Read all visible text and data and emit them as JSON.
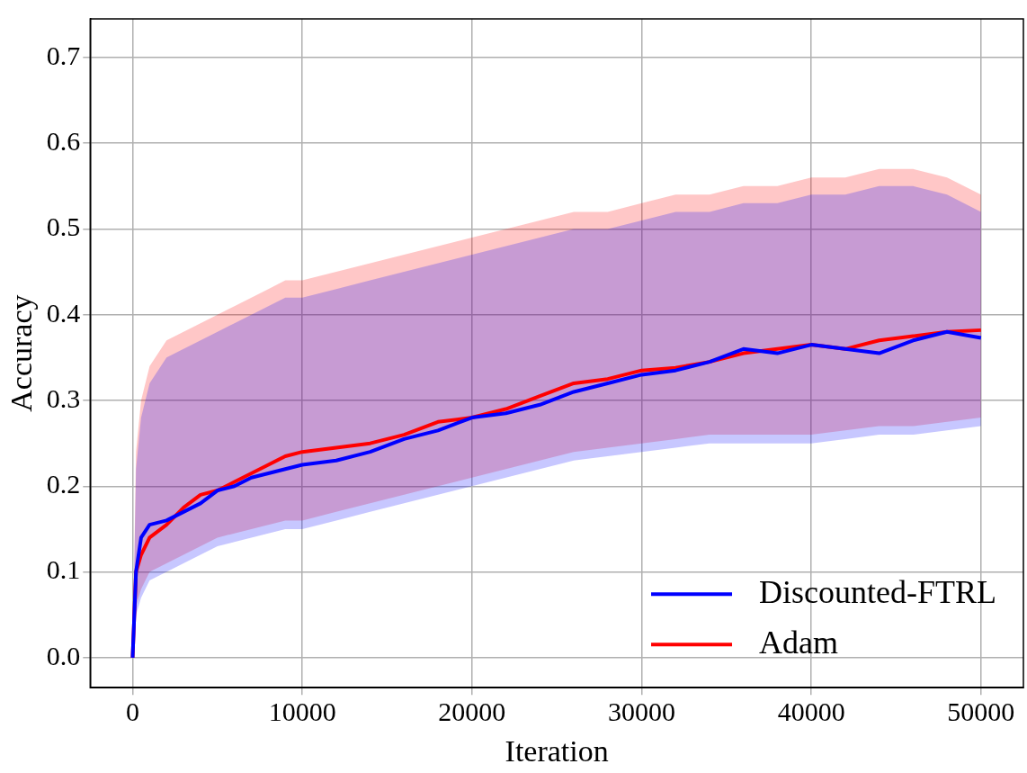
{
  "chart_data": {
    "type": "line",
    "xlabel": "Iteration",
    "ylabel": "Accuracy",
    "x": [
      0,
      200,
      500,
      1000,
      2000,
      3000,
      4000,
      5000,
      6000,
      7000,
      8000,
      9000,
      10000,
      12000,
      14000,
      16000,
      18000,
      20000,
      22000,
      24000,
      26000,
      28000,
      30000,
      32000,
      34000,
      36000,
      38000,
      40000,
      42000,
      44000,
      46000,
      48000,
      50000
    ],
    "series": [
      {
        "name": "Discounted-FTRL",
        "color": "#0000ff",
        "values": [
          0,
          0.1,
          0.14,
          0.155,
          0.16,
          0.17,
          0.18,
          0.195,
          0.2,
          0.21,
          0.215,
          0.22,
          0.225,
          0.23,
          0.24,
          0.255,
          0.265,
          0.28,
          0.285,
          0.295,
          0.31,
          0.32,
          0.33,
          0.335,
          0.345,
          0.36,
          0.355,
          0.365,
          0.36,
          0.355,
          0.37,
          0.38,
          0.373
        ],
        "lower": [
          0,
          0.05,
          0.07,
          0.09,
          0.1,
          0.11,
          0.12,
          0.13,
          0.135,
          0.14,
          0.145,
          0.15,
          0.15,
          0.16,
          0.17,
          0.18,
          0.19,
          0.2,
          0.21,
          0.22,
          0.23,
          0.235,
          0.24,
          0.245,
          0.25,
          0.25,
          0.25,
          0.25,
          0.255,
          0.26,
          0.26,
          0.265,
          0.27
        ],
        "upper": [
          0,
          0.22,
          0.28,
          0.32,
          0.35,
          0.36,
          0.37,
          0.38,
          0.39,
          0.4,
          0.41,
          0.42,
          0.42,
          0.43,
          0.44,
          0.45,
          0.46,
          0.47,
          0.48,
          0.49,
          0.5,
          0.5,
          0.51,
          0.52,
          0.52,
          0.53,
          0.53,
          0.54,
          0.54,
          0.55,
          0.55,
          0.54,
          0.52
        ]
      },
      {
        "name": "Adam",
        "color": "#ff0000",
        "values": [
          0,
          0.1,
          0.12,
          0.14,
          0.155,
          0.175,
          0.19,
          0.195,
          0.205,
          0.215,
          0.225,
          0.235,
          0.24,
          0.245,
          0.25,
          0.26,
          0.275,
          0.28,
          0.29,
          0.305,
          0.32,
          0.325,
          0.335,
          0.338,
          0.345,
          0.355,
          0.36,
          0.365,
          0.36,
          0.37,
          0.375,
          0.38,
          0.382
        ],
        "lower": [
          0,
          0.06,
          0.08,
          0.1,
          0.11,
          0.12,
          0.13,
          0.14,
          0.145,
          0.15,
          0.155,
          0.16,
          0.16,
          0.17,
          0.18,
          0.19,
          0.2,
          0.21,
          0.22,
          0.23,
          0.24,
          0.245,
          0.25,
          0.255,
          0.26,
          0.26,
          0.26,
          0.26,
          0.265,
          0.27,
          0.27,
          0.275,
          0.28
        ],
        "upper": [
          0,
          0.24,
          0.3,
          0.34,
          0.37,
          0.38,
          0.39,
          0.4,
          0.41,
          0.42,
          0.43,
          0.44,
          0.44,
          0.45,
          0.46,
          0.47,
          0.48,
          0.49,
          0.5,
          0.51,
          0.52,
          0.52,
          0.53,
          0.54,
          0.54,
          0.55,
          0.55,
          0.56,
          0.56,
          0.57,
          0.57,
          0.56,
          0.54
        ]
      }
    ],
    "xlim": [
      -2500,
      52500
    ],
    "ylim": [
      -0.035,
      0.745
    ],
    "xticks": [
      0,
      10000,
      20000,
      30000,
      40000,
      50000
    ],
    "yticks": [
      {
        "value": 0,
        "label": "0.0"
      },
      {
        "value": 0.1,
        "label": "0.1"
      },
      {
        "value": 0.2,
        "label": "0.2"
      },
      {
        "value": 0.3,
        "label": "0.3"
      },
      {
        "value": 0.4,
        "label": "0.4"
      },
      {
        "value": 0.5,
        "label": "0.5"
      },
      {
        "value": 0.6,
        "label": "0.6"
      },
      {
        "value": 0.7,
        "label": "0.7"
      }
    ],
    "grid": true,
    "legend": "bottom right",
    "marker": "none",
    "line_style": "solid"
  }
}
